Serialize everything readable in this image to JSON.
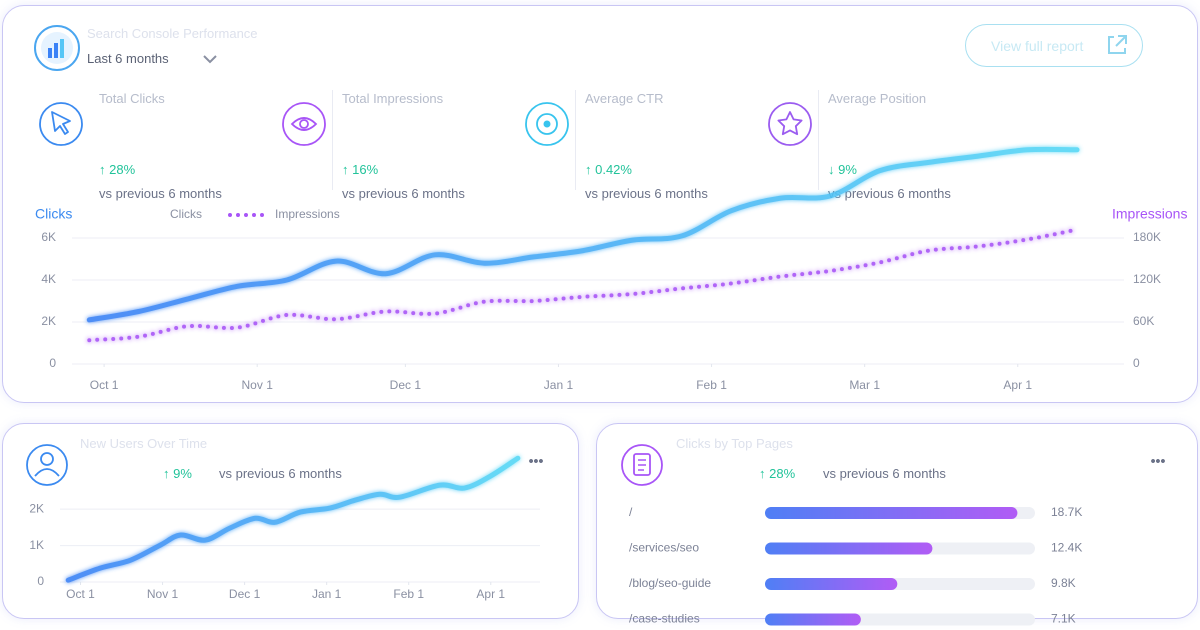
{
  "header": {
    "title": "Search Console Performance",
    "period": "Last 6 months",
    "button": "View full report"
  },
  "kpis": [
    {
      "label": "Total Clicks",
      "change": "↑ 28%",
      "note": "vs previous 6 months"
    },
    {
      "label": "Total Impressions",
      "change": "↑ 16%",
      "note": "vs previous 6 months"
    },
    {
      "label": "Average CTR",
      "change": "↑ 0.42%",
      "note": "vs previous 6 months"
    },
    {
      "label": "Average Position",
      "change": "↓ 9%",
      "note": "vs previous 6 months"
    }
  ],
  "chart_data": [
    {
      "type": "line",
      "y_label": "Clicks",
      "y2_label": "Impressions",
      "x": [
        -3,
        7,
        17,
        27,
        37,
        47,
        57,
        67,
        77,
        87,
        97,
        107,
        117,
        127,
        137,
        147,
        157,
        167,
        177,
        187,
        197
      ],
      "xlim": [
        -6.5,
        205.7
      ],
      "xticks": [
        {
          "value": 0,
          "label": "Oct 1"
        },
        {
          "value": 31,
          "label": "Nov 1"
        },
        {
          "value": 61,
          "label": "Dec 1"
        },
        {
          "value": 92,
          "label": "Jan 1"
        },
        {
          "value": 123,
          "label": "Feb 1"
        },
        {
          "value": 154,
          "label": "Mar 1"
        },
        {
          "value": 185,
          "label": "Apr 1"
        }
      ],
      "ylim": [
        0,
        6000
      ],
      "yticks": [
        0,
        {
          "value": 2000,
          "label": "2K"
        },
        {
          "value": 4000,
          "label": "4K"
        },
        {
          "value": 6000,
          "label": "6K"
        }
      ],
      "y2lim": [
        0,
        180000
      ],
      "y2ticks": [
        0,
        {
          "value": 60000,
          "label": "60K"
        },
        {
          "value": 120000,
          "label": "120K"
        },
        {
          "value": 180000,
          "label": "180K"
        }
      ],
      "grid": true,
      "series": [
        {
          "name": "Clicks",
          "color": "#3b8af0",
          "values": [
            2100,
            2500,
            3100,
            3700,
            4000,
            4900,
            4300,
            5200,
            4800,
            5100,
            5400,
            5900,
            6100,
            7300,
            7900,
            8000,
            9200,
            9600,
            9900,
            10200,
            10200
          ]
        },
        {
          "name": "Impressions",
          "color": "#a855f7",
          "axis": "y2",
          "dash": "dotted",
          "values": [
            34000,
            39000,
            54000,
            52000,
            70000,
            64000,
            75000,
            72000,
            89000,
            90000,
            96000,
            100000,
            108000,
            115000,
            125000,
            133000,
            145000,
            162000,
            168000,
            178000,
            192000
          ]
        }
      ]
    },
    {
      "type": "line",
      "title": "New Users Over Time",
      "change": "↑ 9%",
      "note": "vs previous 6 months",
      "x": [
        -0.15,
        0.24,
        0.61,
        0.97,
        1.22,
        1.52,
        1.82,
        2.13,
        2.37,
        2.68,
        3.04,
        3.35,
        3.65,
        3.89,
        4.38,
        4.68,
        4.99,
        5.33
      ],
      "xlim": [
        -0.25,
        5.6
      ],
      "xticks": [
        {
          "value": 0,
          "label": "Oct 1"
        },
        {
          "value": 1,
          "label": "Nov 1"
        },
        {
          "value": 2,
          "label": "Dec 1"
        },
        {
          "value": 3,
          "label": "Jan 1"
        },
        {
          "value": 4,
          "label": "Feb 1"
        },
        {
          "value": 5,
          "label": "Apr 1"
        }
      ],
      "ylim": [
        0,
        3900
      ],
      "yticks": [
        0,
        {
          "value": 1000,
          "label": "1K"
        },
        {
          "value": 2000,
          "label": "2K"
        }
      ],
      "grid": true,
      "color": "#3b8af0",
      "values": [
        50,
        380,
        600,
        1010,
        1290,
        1150,
        1480,
        1750,
        1640,
        1920,
        2030,
        2250,
        2410,
        2330,
        2660,
        2580,
        2900,
        3400
      ]
    },
    {
      "type": "barh",
      "title": "Clicks by Top Pages",
      "change": "↑ 28%",
      "note": "vs previous 6 months",
      "categories": [
        "/",
        "/services/seo",
        "/blog/seo-guide",
        "/case-studies"
      ],
      "values": [
        18700,
        12400,
        9800,
        7100
      ],
      "value_labels": [
        "18.7K",
        "12.4K",
        "9.8K",
        "7.1K"
      ],
      "xlim": [
        0,
        20000
      ],
      "color": "#a855f7"
    }
  ]
}
